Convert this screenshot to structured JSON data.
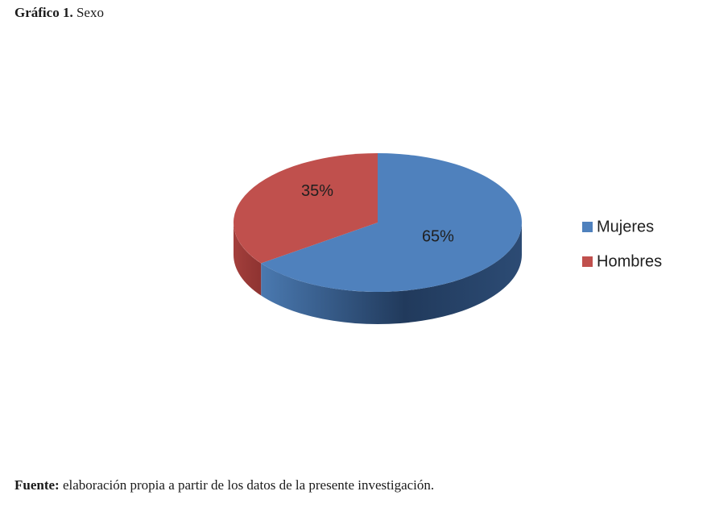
{
  "caption": {
    "label": "Gráfico 1.",
    "text": "Sexo"
  },
  "source": {
    "label": "Fuente:",
    "text": "elaboración propia a partir de los datos de la presente investigación."
  },
  "chart_data": {
    "type": "pie",
    "title": "",
    "style": "3d",
    "legend_position": "right",
    "slices": [
      {
        "name": "Mujeres",
        "value": 65,
        "label": "65%",
        "color": "#4f81bd"
      },
      {
        "name": "Hombres",
        "value": 35,
        "label": "35%",
        "color": "#c0504d"
      }
    ]
  }
}
